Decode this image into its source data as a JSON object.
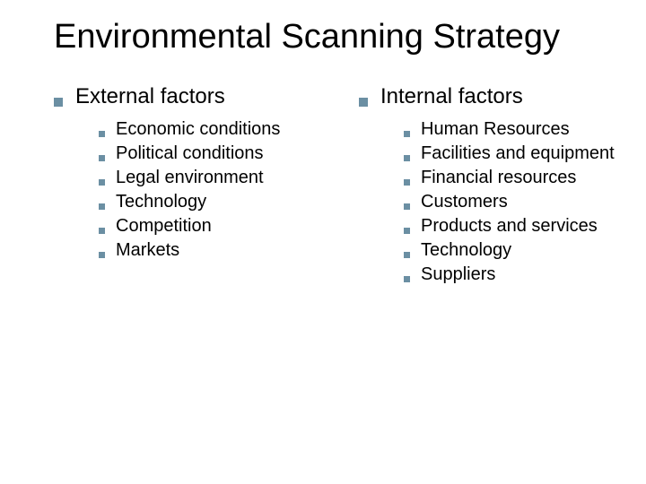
{
  "title": "Environmental Scanning Strategy",
  "bullet_color": "#6b8fa3",
  "columns": {
    "left": {
      "heading": "External factors",
      "items": [
        "Economic conditions",
        "Political conditions",
        "Legal environment",
        "Technology",
        "Competition",
        "Markets"
      ]
    },
    "right": {
      "heading": "Internal factors",
      "items": [
        "Human Resources",
        "Facilities and equipment",
        "Financial resources",
        "Customers",
        "Products and services",
        "Technology",
        "Suppliers"
      ]
    }
  }
}
